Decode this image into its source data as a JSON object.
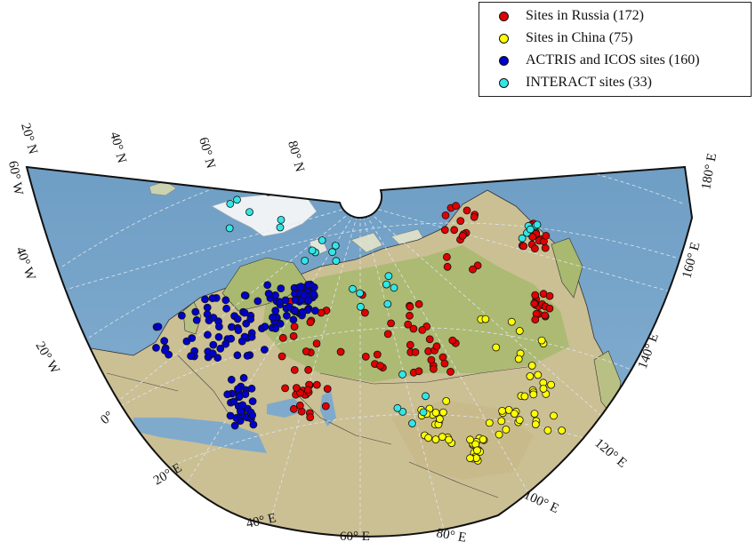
{
  "legend": {
    "items": [
      {
        "label": "Sites in Russia (172)",
        "color": "#e00000"
      },
      {
        "label": "Sites in China (75)",
        "color": "#ffff00"
      },
      {
        "label": "ACTRIS and ICOS sites (160)",
        "color": "#0000cc"
      },
      {
        "label": "INTERACT sites (33)",
        "color": "#33e6e6"
      }
    ]
  },
  "meridian_labels": [
    "0°",
    "20° E",
    "40° E",
    "60° E",
    "80° E",
    "100° E",
    "120° E",
    "140° E",
    "160° E",
    "180° E",
    "20° W",
    "40° W",
    "60° W"
  ],
  "parallel_labels": [
    "20° N",
    "40° N",
    "60° N",
    "80° N"
  ],
  "colors": {
    "ocean": "#7aa6c9",
    "land": "#cbbf94",
    "forest": "#a9b96f",
    "ice": "#eef2f5",
    "graticule": "#dfe6ec",
    "russia_site": "#e00000",
    "china_site": "#ffff00",
    "actris_site": "#0000cc",
    "interact_site": "#33e6e6"
  }
}
